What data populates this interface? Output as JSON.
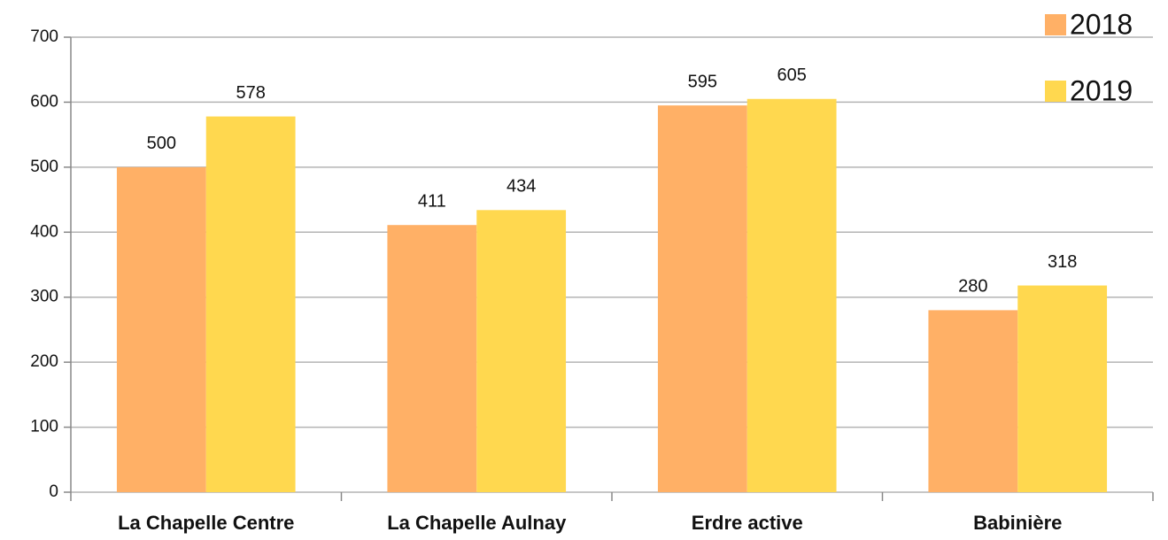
{
  "chart_data": {
    "type": "bar",
    "categories": [
      "La Chapelle Centre",
      "La Chapelle Aulnay",
      "Erdre active",
      "Babinière"
    ],
    "series": [
      {
        "name": "2018",
        "color": "#ffb066",
        "values": [
          500,
          411,
          595,
          280
        ]
      },
      {
        "name": "2019",
        "color": "#ffd84f",
        "values": [
          578,
          434,
          605,
          318
        ]
      }
    ],
    "ylim": [
      0,
      700
    ],
    "yticks": [
      0,
      100,
      200,
      300,
      400,
      500,
      600,
      700
    ],
    "grid": true,
    "legend": "top-right"
  }
}
